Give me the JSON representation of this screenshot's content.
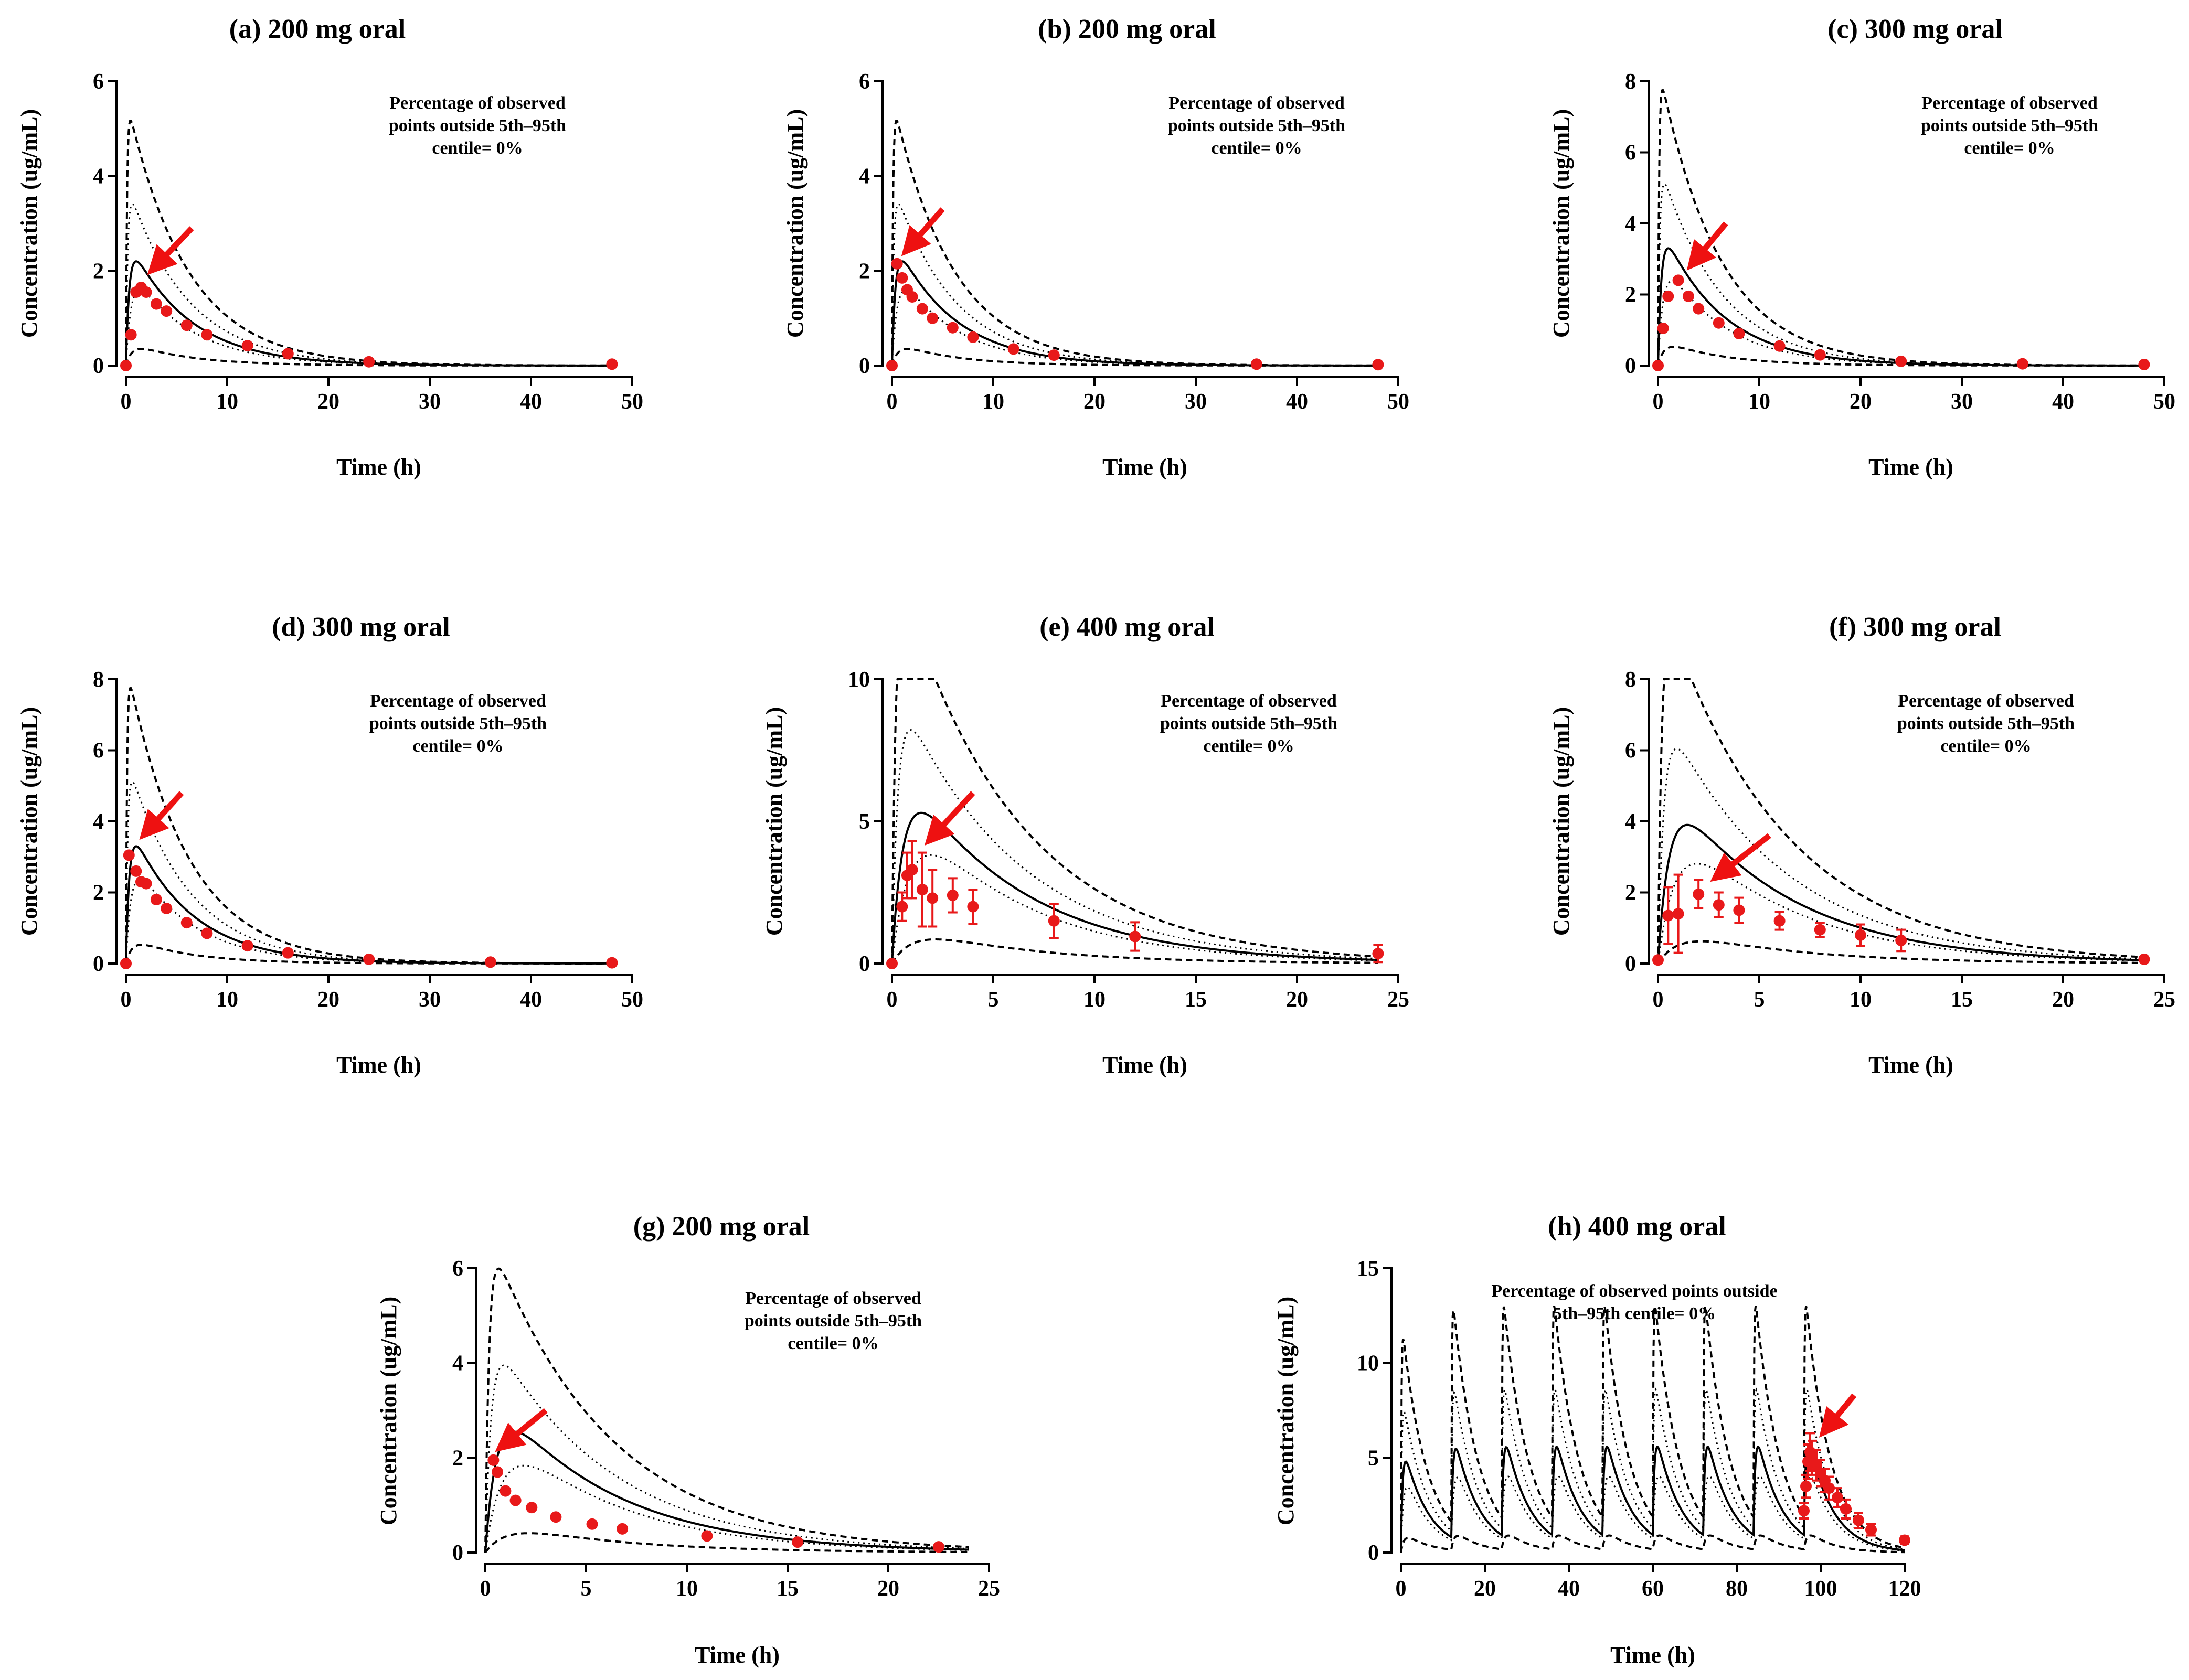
{
  "figure": {
    "colors": {
      "observed": "#e8191a",
      "arrow": "#ee1111",
      "line": "#000000"
    },
    "line_styles": [
      "solid median",
      "dotted 25th/75th centile",
      "dashed 5th/95th centile"
    ]
  },
  "chart_data": [
    {
      "id": "a",
      "type": "line",
      "title": "(a) 200 mg oral",
      "xlabel": "Time (h)",
      "ylabel": "Concentration (ug/mL)",
      "xlim": [
        0,
        50
      ],
      "ylim": [
        0,
        6
      ],
      "xticks": [
        0,
        10,
        20,
        30,
        40,
        50
      ],
      "yticks": [
        0,
        2,
        4,
        6
      ],
      "annotation": [
        "Percentage of observed",
        "points outside 5th–95th",
        "centile= 0%"
      ],
      "model": {
        "dose": 2.2,
        "ka": 3.0,
        "tmax": 48,
        "tlag": 0.0
      },
      "observed": {
        "x": [
          0,
          0.5,
          1,
          1.5,
          2,
          3,
          4,
          6,
          8,
          12,
          16,
          24,
          48
        ],
        "y": [
          0,
          0.65,
          1.55,
          1.65,
          1.55,
          1.3,
          1.15,
          0.85,
          0.65,
          0.42,
          0.25,
          0.08,
          0.03
        ]
      },
      "arrow": {
        "tip": [
          2.5,
          2.0
        ],
        "tail": [
          6.5,
          2.9
        ]
      }
    },
    {
      "id": "b",
      "type": "line",
      "title": "(b) 200 mg oral",
      "xlabel": "Time (h)",
      "ylabel": "Concentration (ug/mL)",
      "xlim": [
        0,
        50
      ],
      "ylim": [
        0,
        6
      ],
      "xticks": [
        0,
        10,
        20,
        30,
        40,
        50
      ],
      "yticks": [
        0,
        2,
        4,
        6
      ],
      "annotation": [
        "Percentage of observed",
        "points outside 5th–95th",
        "centile= 0%"
      ],
      "model": {
        "dose": 2.2,
        "ka": 3.0,
        "tmax": 48,
        "tlag": 0.0
      },
      "observed": {
        "x": [
          0,
          0.5,
          1,
          1.5,
          2,
          3,
          4,
          6,
          8,
          12,
          16,
          36,
          48
        ],
        "y": [
          0,
          2.15,
          1.85,
          1.6,
          1.45,
          1.2,
          1.0,
          0.8,
          0.6,
          0.35,
          0.22,
          0.03,
          0.02
        ]
      },
      "arrow": {
        "tip": [
          1.3,
          2.4
        ],
        "tail": [
          5.0,
          3.3
        ]
      }
    },
    {
      "id": "c",
      "type": "line",
      "title": "(c) 300 mg oral",
      "xlabel": "Time (h)",
      "ylabel": "Concentration (ug/mL)",
      "xlim": [
        0,
        50
      ],
      "ylim": [
        0,
        8
      ],
      "xticks": [
        0,
        10,
        20,
        30,
        40,
        50
      ],
      "yticks": [
        0,
        2,
        4,
        6,
        8
      ],
      "annotation": [
        "Percentage of observed",
        "points outside 5th–95th",
        "centile= 0%"
      ],
      "model": {
        "dose": 3.3,
        "ka": 3.0,
        "tmax": 48,
        "tlag": 0.0
      },
      "observed": {
        "x": [
          0,
          0.5,
          1,
          2,
          3,
          4,
          6,
          8,
          12,
          16,
          24,
          36,
          48
        ],
        "y": [
          0,
          1.05,
          1.95,
          2.4,
          1.95,
          1.6,
          1.2,
          0.9,
          0.55,
          0.3,
          0.12,
          0.05,
          0.03
        ]
      },
      "arrow": {
        "tip": [
          3.2,
          2.8
        ],
        "tail": [
          6.7,
          4.0
        ]
      }
    },
    {
      "id": "d",
      "type": "line",
      "title": "(d) 300 mg oral",
      "xlabel": "Time (h)",
      "ylabel": "Concentration (ug/mL)",
      "xlim": [
        0,
        50
      ],
      "ylim": [
        0,
        8
      ],
      "xticks": [
        0,
        10,
        20,
        30,
        40,
        50
      ],
      "yticks": [
        0,
        2,
        4,
        6,
        8
      ],
      "annotation": [
        "Percentage of observed",
        "points outside 5th–95th",
        "centile= 0%"
      ],
      "model": {
        "dose": 3.3,
        "ka": 3.0,
        "tmax": 48,
        "tlag": 0.0
      },
      "observed": {
        "x": [
          0,
          0.3,
          1,
          1.5,
          2,
          3,
          4,
          6,
          8,
          12,
          16,
          24,
          36,
          48
        ],
        "y": [
          0,
          3.05,
          2.6,
          2.3,
          2.25,
          1.8,
          1.55,
          1.15,
          0.85,
          0.5,
          0.3,
          0.12,
          0.04,
          0.02
        ]
      },
      "arrow": {
        "tip": [
          1.7,
          3.6
        ],
        "tail": [
          5.5,
          4.8
        ]
      }
    },
    {
      "id": "e",
      "type": "line",
      "title": "(e) 400 mg oral",
      "xlabel": "Time (h)",
      "ylabel": "Concentration (ug/mL)",
      "xlim": [
        0,
        25
      ],
      "ylim": [
        0,
        10
      ],
      "xticks": [
        0,
        5,
        10,
        15,
        20,
        25
      ],
      "yticks": [
        0,
        5,
        10
      ],
      "annotation": [
        "Percentage of observed",
        "points outside 5th–95th",
        "centile= 0%"
      ],
      "model": {
        "dose": 5.3,
        "ka": 1.8,
        "tmax": 24,
        "tlag": 0.0
      },
      "observed": {
        "x": [
          0,
          0.5,
          0.75,
          1,
          1.5,
          2,
          3,
          4,
          8,
          12,
          24
        ],
        "y": [
          0,
          2.0,
          3.1,
          3.3,
          2.6,
          2.3,
          2.4,
          2.0,
          1.5,
          0.95,
          0.35
        ],
        "err": [
          0,
          0.5,
          0.8,
          1.0,
          1.3,
          1.0,
          0.6,
          0.6,
          0.6,
          0.5,
          0.3
        ]
      },
      "arrow": {
        "tip": [
          1.8,
          4.3
        ],
        "tail": [
          4.0,
          6.0
        ]
      }
    },
    {
      "id": "f",
      "type": "line",
      "title": "(f) 300 mg oral",
      "xlabel": "Time (h)",
      "ylabel": "Concentration (ug/mL)",
      "xlim": [
        0,
        25
      ],
      "ylim": [
        0,
        8
      ],
      "xticks": [
        0,
        5,
        10,
        15,
        20,
        25
      ],
      "yticks": [
        0,
        2,
        4,
        6,
        8
      ],
      "annotation": [
        "Percentage of observed",
        "points outside 5th–95th",
        "centile= 0%"
      ],
      "model": {
        "dose": 3.9,
        "ka": 1.8,
        "tmax": 24,
        "tlag": 0.0
      },
      "observed": {
        "x": [
          0,
          0.5,
          1,
          2,
          3,
          4,
          6,
          8,
          10,
          12,
          24
        ],
        "y": [
          0.1,
          1.35,
          1.4,
          1.95,
          1.65,
          1.5,
          1.2,
          0.95,
          0.8,
          0.65,
          0.12
        ],
        "err": [
          0,
          0.8,
          1.1,
          0.4,
          0.35,
          0.35,
          0.25,
          0.2,
          0.3,
          0.3,
          0
        ]
      },
      "arrow": {
        "tip": [
          2.8,
          2.4
        ],
        "tail": [
          5.5,
          3.6
        ]
      }
    },
    {
      "id": "g",
      "type": "line",
      "title": "(g) 200 mg oral",
      "xlabel": "Time (h)",
      "ylabel": "Concentration (ug/mL)",
      "xlim": [
        0,
        25
      ],
      "ylim": [
        0,
        6
      ],
      "xticks": [
        0,
        5,
        10,
        15,
        20,
        25
      ],
      "yticks": [
        0,
        2,
        4,
        6
      ],
      "annotation": [
        "Percentage of observed",
        "points outside 5th–95th",
        "centile= 0%"
      ],
      "model": {
        "dose": 2.55,
        "ka": 1.8,
        "tmax": 24,
        "tlag": 0.0
      },
      "observed": {
        "x": [
          0.4,
          0.6,
          1,
          1.5,
          2.3,
          3.5,
          5.3,
          6.8,
          11,
          15.5,
          22.5
        ],
        "y": [
          1.95,
          1.7,
          1.3,
          1.1,
          0.95,
          0.75,
          0.6,
          0.5,
          0.35,
          0.22,
          0.12
        ]
      },
      "arrow": {
        "tip": [
          0.7,
          2.2
        ],
        "tail": [
          3.0,
          3.0
        ]
      }
    },
    {
      "id": "h",
      "type": "line",
      "title": "(h) 400 mg oral",
      "xlabel": "Time (h)",
      "ylabel": "Concentration (ug/mL)",
      "xlim": [
        0,
        120
      ],
      "ylim": [
        0,
        15
      ],
      "xticks": [
        0,
        20,
        40,
        60,
        80,
        100,
        120
      ],
      "yticks": [
        0,
        5,
        10,
        15
      ],
      "annotation": [
        "Percentage of observed points outside",
        "5th–95th centile= 0%"
      ],
      "model": {
        "dose": 4.8,
        "ka": 2.5,
        "tmax": 120,
        "tlag": 0.0,
        "tau": 12,
        "ndoses": 9
      },
      "observed": {
        "x": [
          96,
          96.5,
          97,
          97.5,
          98,
          99,
          100,
          101,
          102,
          104,
          106,
          109,
          112,
          120
        ],
        "y": [
          2.2,
          3.5,
          4.8,
          5.3,
          5.0,
          4.6,
          4.2,
          3.8,
          3.4,
          2.9,
          2.3,
          1.7,
          1.2,
          0.65
        ],
        "err": [
          0.4,
          0.6,
          0.9,
          1.0,
          0.9,
          0.8,
          0.7,
          0.6,
          0.6,
          0.5,
          0.5,
          0.4,
          0.3,
          0.2
        ]
      },
      "arrow": {
        "tip": [
          100.5,
          6.3
        ],
        "tail": [
          108,
          8.3
        ]
      }
    }
  ]
}
